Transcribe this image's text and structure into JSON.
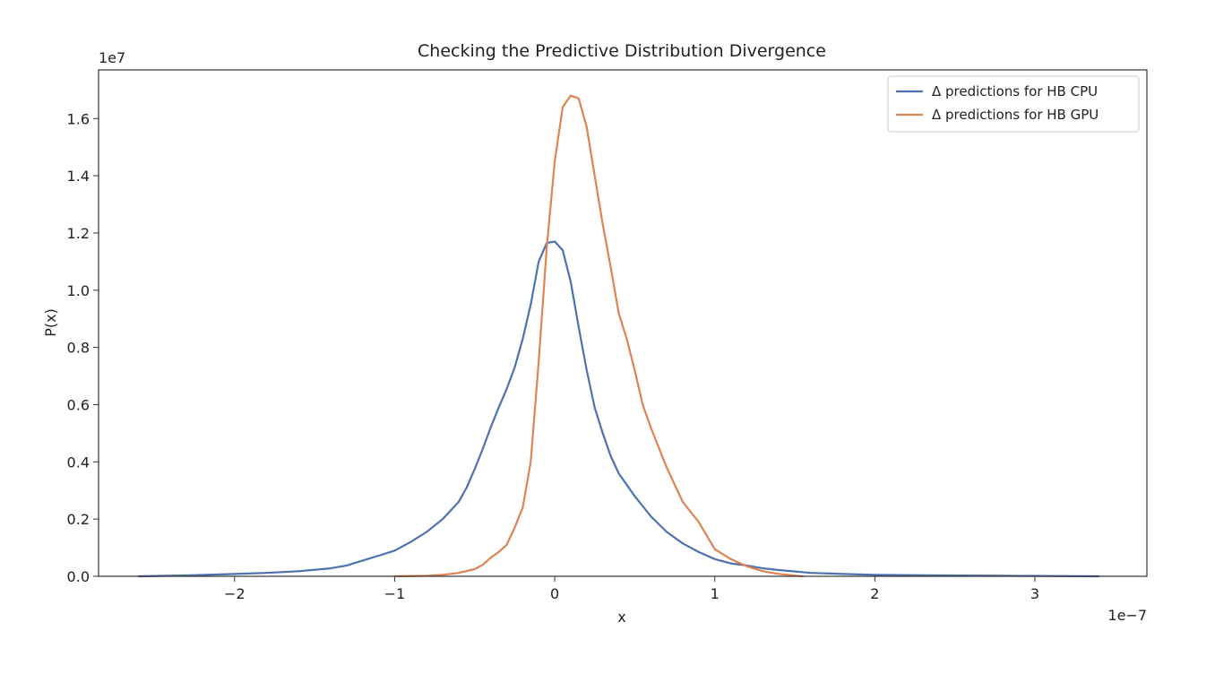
{
  "chart_data": {
    "type": "line",
    "title": "Checking the Predictive Distribution Divergence",
    "xlabel": "x",
    "ylabel": "P(x)",
    "x_offset_label": "1e−7",
    "y_offset_label": "1e7",
    "x_unit_scale": 1e-07,
    "y_unit_scale": 10000000.0,
    "xlim": [
      -2.85,
      3.7
    ],
    "ylim": [
      0,
      1.77
    ],
    "x_ticks": [
      -2,
      -1,
      0,
      1,
      2,
      3
    ],
    "x_tick_labels": [
      "−2",
      "−1",
      "0",
      "1",
      "2",
      "3"
    ],
    "y_ticks": [
      0,
      0.2,
      0.4,
      0.6,
      0.8,
      1.0,
      1.2,
      1.4,
      1.6
    ],
    "y_tick_labels": [
      "0.0",
      "0.2",
      "0.4",
      "0.6",
      "0.8",
      "1.0",
      "1.2",
      "1.4",
      "1.6"
    ],
    "grid": false,
    "legend_position": "top-right",
    "series": [
      {
        "name": "Δ predictions for HB CPU",
        "color": "#4c72b0",
        "x": [
          -2.6,
          -2.3,
          -2.0,
          -1.8,
          -1.6,
          -1.4,
          -1.3,
          -1.2,
          -1.1,
          -1.0,
          -0.9,
          -0.8,
          -0.7,
          -0.6,
          -0.55,
          -0.5,
          -0.45,
          -0.4,
          -0.35,
          -0.3,
          -0.25,
          -0.2,
          -0.15,
          -0.1,
          -0.05,
          0.0,
          0.05,
          0.1,
          0.15,
          0.2,
          0.25,
          0.3,
          0.35,
          0.4,
          0.5,
          0.6,
          0.7,
          0.8,
          0.9,
          1.0,
          1.1,
          1.2,
          1.3,
          1.4,
          1.6,
          1.8,
          2.0,
          2.4,
          2.8,
          3.1,
          3.4
        ],
        "y": [
          0.0,
          0.003,
          0.008,
          0.012,
          0.018,
          0.028,
          0.038,
          0.055,
          0.072,
          0.09,
          0.12,
          0.155,
          0.2,
          0.26,
          0.31,
          0.375,
          0.445,
          0.52,
          0.59,
          0.655,
          0.73,
          0.83,
          0.95,
          1.1,
          1.165,
          1.17,
          1.14,
          1.03,
          0.87,
          0.72,
          0.59,
          0.5,
          0.42,
          0.36,
          0.28,
          0.21,
          0.155,
          0.115,
          0.085,
          0.06,
          0.045,
          0.038,
          0.028,
          0.022,
          0.012,
          0.008,
          0.005,
          0.003,
          0.002,
          0.001,
          0.0
        ]
      },
      {
        "name": "Δ predictions for HB GPU",
        "color": "#dd8452",
        "x": [
          -1.0,
          -0.8,
          -0.7,
          -0.6,
          -0.5,
          -0.45,
          -0.4,
          -0.35,
          -0.3,
          -0.25,
          -0.2,
          -0.15,
          -0.1,
          -0.05,
          0.0,
          0.05,
          0.1,
          0.15,
          0.2,
          0.25,
          0.3,
          0.35,
          0.4,
          0.45,
          0.5,
          0.55,
          0.6,
          0.7,
          0.8,
          0.9,
          1.0,
          1.1,
          1.2,
          1.3,
          1.4,
          1.55
        ],
        "y": [
          0.0,
          0.002,
          0.005,
          0.012,
          0.025,
          0.04,
          0.065,
          0.085,
          0.11,
          0.17,
          0.24,
          0.4,
          0.75,
          1.15,
          1.45,
          1.64,
          1.68,
          1.67,
          1.57,
          1.4,
          1.23,
          1.08,
          0.92,
          0.83,
          0.72,
          0.6,
          0.52,
          0.38,
          0.26,
          0.19,
          0.095,
          0.06,
          0.035,
          0.018,
          0.008,
          0.0
        ]
      }
    ]
  }
}
